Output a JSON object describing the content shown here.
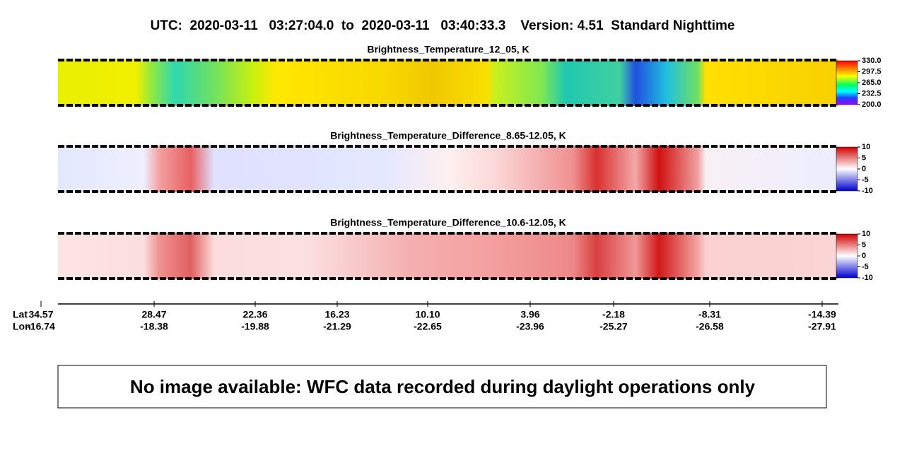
{
  "title": "UTC:  2020-03-11   03:27:04.0  to  2020-03-11   03:40:33.3    Version: 4.51  Standard Nighttime",
  "panels": [
    {
      "title": "Brightness_Temperature_12_05, K",
      "clim": [
        200,
        330
      ],
      "colorbar_ticks": [
        {
          "value": 330,
          "label": "330.0"
        },
        297.5,
        {
          "value": 265,
          "label": "265.0"
        },
        232.5,
        {
          "value": 200,
          "label": "200.0"
        }
      ]
    },
    {
      "title": "Brightness_Temperature_Difference_8.65-12.05, K",
      "clim": [
        -10,
        10
      ],
      "colorbar_ticks": [
        10,
        5,
        0,
        -5,
        -10
      ]
    },
    {
      "title": "Brightness_Temperature_Difference_10.6-12.05, K",
      "clim": [
        -10,
        10
      ],
      "colorbar_ticks": [
        10,
        5,
        0,
        -5,
        -10
      ]
    }
  ],
  "axis": {
    "lat_label": "Lat",
    "lon_label": "Lon",
    "lat": [
      34.57,
      28.47,
      22.36,
      16.23,
      {
        "value": 10.1,
        "label": "10.10"
      },
      3.96,
      -2.18,
      -8.31,
      -14.39
    ],
    "lon": [
      -16.74,
      -18.38,
      -19.88,
      -21.29,
      -22.65,
      -23.96,
      -25.27,
      -26.58,
      -27.91
    ]
  },
  "message": "No image available: WFC data recorded during daylight operations only"
}
